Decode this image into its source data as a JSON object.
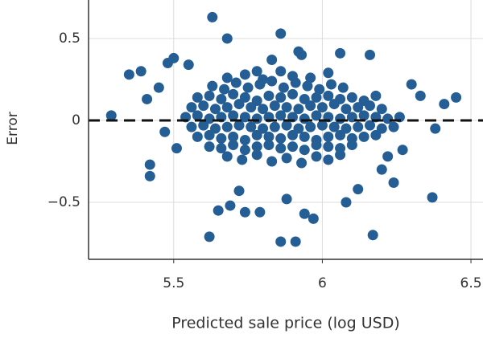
{
  "chart_data": {
    "type": "scatter",
    "xlabel": "Predicted sale price (log USD)",
    "ylabel": "Error",
    "xlim": [
      5.2135,
      6.5405
    ],
    "xticks": [
      5.5,
      6,
      6.5
    ],
    "ylim": [
      -0.848,
      0.735
    ],
    "yticks": [
      {
        "value": -0.5,
        "label": "−0.5"
      },
      0,
      0.5
    ],
    "grid": true,
    "hline": 0,
    "color": "#255e95",
    "x": [
      5.63,
      5.67,
      5.71,
      5.75,
      5.79,
      5.83,
      5.87,
      5.91,
      5.95,
      5.99,
      6.03,
      6.07,
      5.58,
      5.62,
      5.66,
      5.7,
      5.74,
      5.78,
      5.82,
      5.86,
      5.9,
      5.94,
      5.98,
      6.02,
      6.06,
      6.1,
      6.14,
      6.18,
      5.56,
      5.6,
      5.64,
      5.68,
      5.72,
      5.76,
      5.8,
      5.84,
      5.88,
      5.92,
      5.96,
      6.0,
      6.04,
      6.08,
      6.12,
      6.16,
      6.2,
      5.54,
      5.58,
      5.62,
      5.66,
      5.7,
      5.74,
      5.78,
      5.82,
      5.86,
      5.9,
      5.94,
      5.98,
      6.02,
      6.06,
      6.1,
      6.14,
      6.18,
      6.22,
      6.26,
      5.56,
      5.6,
      5.64,
      5.68,
      5.72,
      5.76,
      5.8,
      5.84,
      5.88,
      5.92,
      5.96,
      6.0,
      6.04,
      6.08,
      6.12,
      6.16,
      6.2,
      6.24,
      5.58,
      5.62,
      5.66,
      5.7,
      5.74,
      5.78,
      5.82,
      5.86,
      5.9,
      5.94,
      5.98,
      6.02,
      6.06,
      6.1,
      6.14,
      6.18,
      5.62,
      5.66,
      5.7,
      5.74,
      5.78,
      5.82,
      5.86,
      5.9,
      5.94,
      5.98,
      6.02,
      6.06,
      6.1,
      5.68,
      5.73,
      5.78,
      5.83,
      5.88,
      5.93,
      5.98,
      6.02,
      6.06,
      5.68,
      5.74,
      5.8,
      5.86,
      5.9,
      5.96,
      6.02,
      5.29,
      5.35,
      5.39,
      5.42,
      5.42,
      5.41,
      5.63,
      5.68,
      5.86,
      5.62,
      5.86,
      5.91,
      6.17,
      6.37,
      6.45,
      6.41,
      6.38,
      6.16,
      6.06,
      5.65,
      5.69,
      5.74,
      5.79,
      5.88,
      5.94,
      5.97,
      6.08,
      6.12,
      6.24,
      5.5,
      5.48,
      5.55,
      5.45,
      5.47,
      5.51,
      5.72,
      6.3,
      6.33,
      6.27,
      6.2,
      6.22,
      5.92,
      5.93,
      5.83,
      5.78
    ],
    "values": [
      0.21,
      0.19,
      0.23,
      0.2,
      0.22,
      0.24,
      0.2,
      0.23,
      0.21,
      0.19,
      0.22,
      0.2,
      0.14,
      0.15,
      0.13,
      0.16,
      0.14,
      0.12,
      0.15,
      0.14,
      0.16,
      0.13,
      0.14,
      0.15,
      0.13,
      0.14,
      0.12,
      0.15,
      0.08,
      0.09,
      0.07,
      0.08,
      0.1,
      0.08,
      0.07,
      0.09,
      0.08,
      0.07,
      0.09,
      0.08,
      0.1,
      0.07,
      0.08,
      0.09,
      0.07,
      0.02,
      0.03,
      0.01,
      0.02,
      0.03,
      0.02,
      0.01,
      0.02,
      0.03,
      0.02,
      0.01,
      0.03,
      0.02,
      0.01,
      0.02,
      0.03,
      0.02,
      0.01,
      0.02,
      -0.04,
      -0.03,
      -0.05,
      -0.04,
      -0.03,
      -0.04,
      -0.05,
      -0.04,
      -0.03,
      -0.05,
      -0.04,
      -0.03,
      -0.04,
      -0.05,
      -0.04,
      -0.03,
      -0.05,
      -0.04,
      -0.1,
      -0.09,
      -0.11,
      -0.1,
      -0.12,
      -0.09,
      -0.1,
      -0.11,
      -0.09,
      -0.1,
      -0.12,
      -0.1,
      -0.09,
      -0.11,
      -0.1,
      -0.09,
      -0.16,
      -0.17,
      -0.15,
      -0.18,
      -0.16,
      -0.15,
      -0.17,
      -0.16,
      -0.18,
      -0.15,
      -0.16,
      -0.17,
      -0.15,
      -0.22,
      -0.24,
      -0.21,
      -0.25,
      -0.23,
      -0.26,
      -0.22,
      -0.24,
      -0.21,
      0.26,
      0.28,
      0.25,
      0.3,
      0.27,
      0.26,
      0.29,
      0.03,
      0.28,
      0.3,
      -0.27,
      -0.34,
      0.13,
      0.63,
      0.5,
      0.53,
      -0.71,
      -0.74,
      -0.74,
      -0.7,
      -0.47,
      0.14,
      0.1,
      -0.05,
      0.4,
      0.41,
      -0.55,
      -0.52,
      -0.56,
      -0.56,
      -0.48,
      -0.57,
      -0.6,
      -0.5,
      -0.42,
      -0.38,
      0.38,
      0.35,
      0.34,
      0.2,
      -0.07,
      -0.17,
      -0.43,
      0.22,
      0.15,
      -0.18,
      -0.3,
      -0.22,
      0.42,
      0.4,
      0.37,
      0.3
    ]
  }
}
